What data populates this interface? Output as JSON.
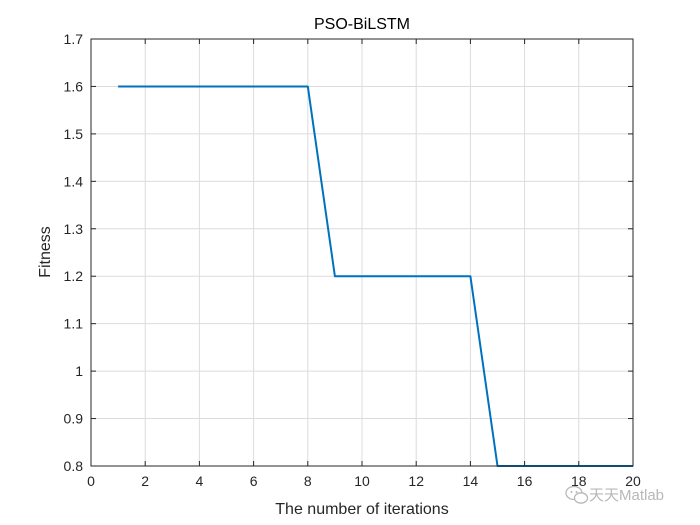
{
  "chart_data": {
    "type": "line",
    "title": "PSO-BiLSTM",
    "xlabel": "The number of iterations",
    "ylabel": "Fitness",
    "xlim": [
      0,
      20
    ],
    "ylim": [
      0.8,
      1.7
    ],
    "xticks": [
      "0",
      "2",
      "4",
      "6",
      "8",
      "10",
      "12",
      "14",
      "16",
      "18",
      "20"
    ],
    "yticks": [
      "0.8",
      "0.9",
      "1",
      "1.1",
      "1.2",
      "1.3",
      "1.4",
      "1.5",
      "1.6",
      "1.7"
    ],
    "grid": true,
    "series": [
      {
        "color": "#0072BD",
        "x": [
          1,
          2,
          3,
          4,
          5,
          6,
          7,
          8,
          9,
          10,
          11,
          12,
          13,
          14,
          15,
          16,
          17,
          18,
          19,
          20
        ],
        "y": [
          1.6,
          1.6,
          1.6,
          1.6,
          1.6,
          1.6,
          1.6,
          1.6,
          1.2,
          1.2,
          1.2,
          1.2,
          1.2,
          1.2,
          0.8,
          0.8,
          0.8,
          0.8,
          0.8,
          0.8
        ]
      }
    ]
  },
  "watermark": {
    "text": "天天Matlab",
    "icon": "wechat-icon"
  }
}
